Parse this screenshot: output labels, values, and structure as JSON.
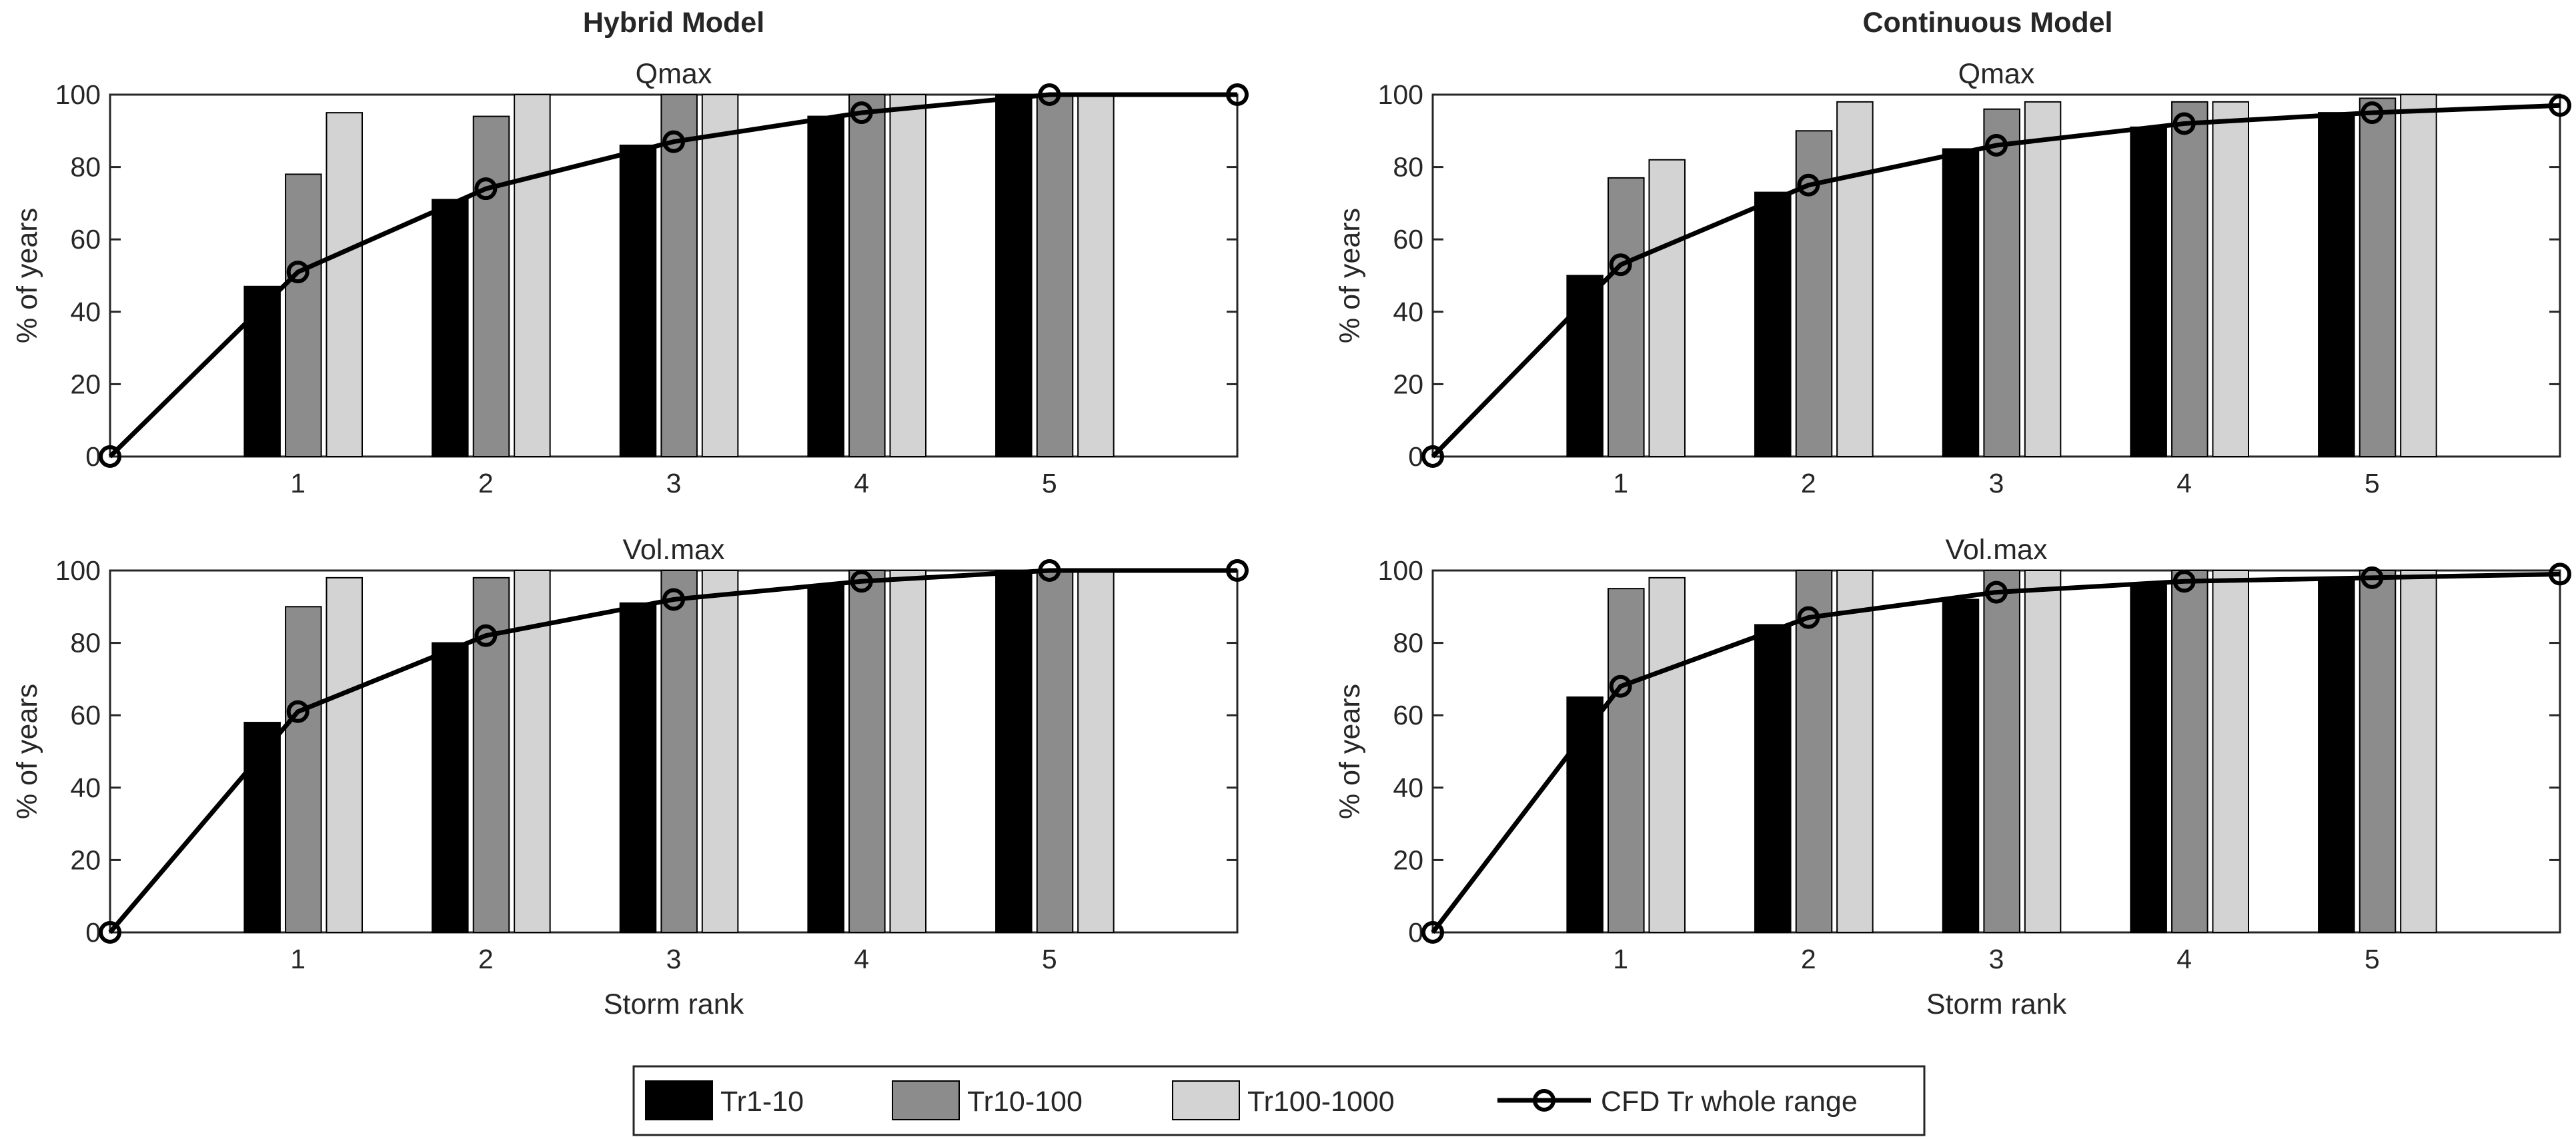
{
  "colors": {
    "Tr1-10": "#000000",
    "Tr10-100": "#8c8c8c",
    "Tr100-1000": "#d3d3d3",
    "cfd_line": "#000000",
    "bar_edge": "#000000"
  },
  "legend": {
    "items": [
      "Tr1-10",
      "Tr10-100",
      "Tr100-1000",
      "CFD Tr whole range"
    ],
    "placement": "bottom-center"
  },
  "chart_data": [
    {
      "type": "bar",
      "column_title": "Hybrid Model",
      "title": "Qmax",
      "xlabel": "",
      "ylabel": "% of years",
      "categories": [
        "1",
        "2",
        "3",
        "4",
        "5"
      ],
      "ylim": [
        0,
        100
      ],
      "yticks": [
        "0",
        "20",
        "40",
        "60",
        "80",
        "100"
      ],
      "series": [
        {
          "name": "Tr1-10",
          "values": [
            47,
            71,
            86,
            94,
            100
          ]
        },
        {
          "name": "Tr10-100",
          "values": [
            78,
            94,
            100,
            100,
            100
          ]
        },
        {
          "name": "Tr100-1000",
          "values": [
            95,
            100,
            100,
            100,
            100
          ]
        }
      ],
      "cfd": {
        "name": "CFD Tr whole range",
        "x": [
          0,
          1,
          2,
          3,
          4,
          5,
          6
        ],
        "y": [
          0,
          51,
          74,
          87,
          95,
          100,
          100
        ]
      }
    },
    {
      "type": "bar",
      "column_title": "Continuous Model",
      "title": "Qmax",
      "xlabel": "",
      "ylabel": "% of years",
      "categories": [
        "1",
        "2",
        "3",
        "4",
        "5"
      ],
      "ylim": [
        0,
        100
      ],
      "yticks": [
        "0",
        "20",
        "40",
        "60",
        "80",
        "100"
      ],
      "series": [
        {
          "name": "Tr1-10",
          "values": [
            50,
            73,
            85,
            91,
            95
          ]
        },
        {
          "name": "Tr10-100",
          "values": [
            77,
            90,
            96,
            98,
            99
          ]
        },
        {
          "name": "Tr100-1000",
          "values": [
            82,
            98,
            98,
            98,
            100
          ]
        }
      ],
      "cfd": {
        "name": "CFD Tr whole range",
        "x": [
          0,
          1,
          2,
          3,
          4,
          5,
          6
        ],
        "y": [
          0,
          53,
          75,
          86,
          92,
          95,
          97
        ]
      }
    },
    {
      "type": "bar",
      "column_title": "",
      "title": "Vol.max",
      "xlabel": "Storm rank",
      "ylabel": "% of years",
      "categories": [
        "1",
        "2",
        "3",
        "4",
        "5"
      ],
      "ylim": [
        0,
        100
      ],
      "yticks": [
        "0",
        "20",
        "40",
        "60",
        "80",
        "100"
      ],
      "series": [
        {
          "name": "Tr1-10",
          "values": [
            58,
            80,
            91,
            96,
            100
          ]
        },
        {
          "name": "Tr10-100",
          "values": [
            90,
            98,
            100,
            100,
            100
          ]
        },
        {
          "name": "Tr100-1000",
          "values": [
            98,
            100,
            100,
            100,
            100
          ]
        }
      ],
      "cfd": {
        "name": "CFD Tr whole range",
        "x": [
          0,
          1,
          2,
          3,
          4,
          5,
          6
        ],
        "y": [
          0,
          61,
          82,
          92,
          97,
          100,
          100
        ]
      }
    },
    {
      "type": "bar",
      "column_title": "",
      "title": "Vol.max",
      "xlabel": "Storm rank",
      "ylabel": "% of years",
      "categories": [
        "1",
        "2",
        "3",
        "4",
        "5"
      ],
      "ylim": [
        0,
        100
      ],
      "yticks": [
        "0",
        "20",
        "40",
        "60",
        "80",
        "100"
      ],
      "series": [
        {
          "name": "Tr1-10",
          "values": [
            65,
            85,
            92,
            96,
            98
          ]
        },
        {
          "name": "Tr10-100",
          "values": [
            95,
            100,
            100,
            100,
            100
          ]
        },
        {
          "name": "Tr100-1000",
          "values": [
            98,
            100,
            100,
            100,
            100
          ]
        }
      ],
      "cfd": {
        "name": "CFD Tr whole range",
        "x": [
          0,
          1,
          2,
          3,
          4,
          5,
          6
        ],
        "y": [
          0,
          68,
          87,
          94,
          97,
          98,
          99
        ]
      }
    }
  ]
}
